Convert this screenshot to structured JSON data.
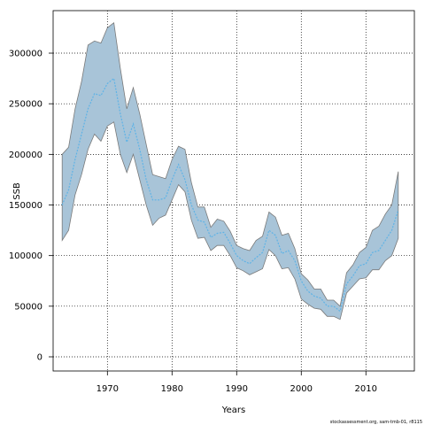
{
  "chart_data": {
    "type": "area",
    "title": "",
    "xlabel": "Years",
    "ylabel": "SSB",
    "xlim": [
      1961.6,
      2017.5
    ],
    "ylim": [
      -14000,
      342000
    ],
    "x_ticks": [
      1970,
      1980,
      1990,
      2000,
      2010
    ],
    "y_ticks": [
      0,
      50000,
      100000,
      150000,
      200000,
      250000,
      300000
    ],
    "grid": true,
    "grid_style": "dotted",
    "band_color": "#a8c4d8",
    "band_edge_color": "#7a7a7a",
    "line_color": "#5fb3e6",
    "x": [
      1963,
      1964,
      1965,
      1966,
      1967,
      1968,
      1969,
      1970,
      1971,
      1972,
      1973,
      1974,
      1975,
      1976,
      1977,
      1978,
      1979,
      1980,
      1981,
      1982,
      1983,
      1984,
      1985,
      1986,
      1987,
      1988,
      1989,
      1990,
      1991,
      1992,
      1993,
      1994,
      1995,
      1996,
      1997,
      1998,
      1999,
      2000,
      2001,
      2002,
      2003,
      2004,
      2005,
      2006,
      2007,
      2008,
      2009,
      2010,
      2011,
      2012,
      2013,
      2014,
      2015
    ],
    "estimate": [
      150000,
      165000,
      195000,
      220000,
      245000,
      260000,
      258000,
      270000,
      275000,
      240000,
      212000,
      230000,
      205000,
      175000,
      155000,
      155000,
      157000,
      175000,
      190000,
      175000,
      150000,
      135000,
      133000,
      118000,
      122000,
      123000,
      112000,
      100000,
      95000,
      92000,
      98000,
      103000,
      125000,
      120000,
      102000,
      105000,
      95000,
      75000,
      65000,
      60000,
      58000,
      50000,
      50000,
      45000,
      72000,
      80000,
      90000,
      92000,
      103000,
      105000,
      115000,
      125000,
      145000
    ],
    "lower": [
      115000,
      125000,
      160000,
      180000,
      205000,
      220000,
      213000,
      228000,
      232000,
      200000,
      182000,
      200000,
      175000,
      150000,
      130000,
      137000,
      140000,
      155000,
      170000,
      163000,
      135000,
      117000,
      118000,
      105000,
      110000,
      110000,
      100000,
      88000,
      85000,
      81000,
      84000,
      87000,
      106000,
      100000,
      87000,
      88000,
      77000,
      57000,
      52000,
      48000,
      47000,
      40000,
      40000,
      37000,
      63000,
      70000,
      77000,
      78000,
      86000,
      86000,
      95000,
      100000,
      117000
    ],
    "upper": [
      200000,
      207000,
      245000,
      272000,
      308000,
      312000,
      310000,
      325000,
      330000,
      285000,
      245000,
      266000,
      240000,
      210000,
      180000,
      178000,
      176000,
      195000,
      208000,
      205000,
      172000,
      148000,
      148000,
      128000,
      136000,
      134000,
      124000,
      110000,
      107000,
      105000,
      115000,
      119000,
      143000,
      138000,
      120000,
      122000,
      107000,
      82000,
      76000,
      67000,
      67000,
      56000,
      56000,
      50000,
      83000,
      91000,
      103000,
      108000,
      125000,
      129000,
      141000,
      150000,
      183000
    ]
  },
  "credit": "stockassessment.org, sam-tmb-01, r8115"
}
